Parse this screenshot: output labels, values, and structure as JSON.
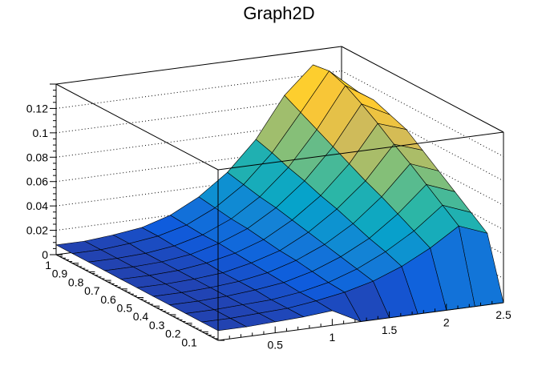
{
  "chart_data": {
    "type": "surface",
    "title": "Graph2D",
    "xlabel": "",
    "ylabel": "",
    "zlabel": "",
    "xlim": [
      0,
      2.5
    ],
    "ylim": [
      0,
      1
    ],
    "zlim": [
      0,
      0.14
    ],
    "x_ticks": [
      "0.5",
      "1",
      "1.5",
      "2",
      "2.5"
    ],
    "x_tick_values": [
      0.5,
      1,
      1.5,
      2,
      2.5
    ],
    "y_ticks": [
      "0.1",
      "0.2",
      "0.3",
      "0.4",
      "0.5",
      "0.6",
      "0.7",
      "0.8",
      "0.9",
      "1"
    ],
    "y_tick_values": [
      0.1,
      0.2,
      0.3,
      0.4,
      0.5,
      0.6,
      0.7,
      0.8,
      0.9,
      1
    ],
    "z_ticks": [
      "0",
      "0.02",
      "0.04",
      "0.06",
      "0.08",
      "0.1",
      "0.12"
    ],
    "z_tick_values": [
      0,
      0.02,
      0.04,
      0.06,
      0.08,
      0.1,
      0.12
    ],
    "grid": "dotted on back walls (z)",
    "palette": [
      "#352a87",
      "#0f5cdd",
      "#1481d6",
      "#06a4ca",
      "#2eb7a4",
      "#87bf77",
      "#d1bb59",
      "#fec832",
      "#f9fb0e"
    ],
    "x": [
      0,
      0.25,
      0.5,
      0.75,
      1,
      1.25,
      1.5,
      1.75,
      2,
      2.25,
      2.5
    ],
    "y": [
      0,
      0.1,
      0.2,
      0.3,
      0.4,
      0.5,
      0.6,
      0.7,
      0.8,
      0.9,
      1
    ],
    "z": [
      [
        0.008,
        0.008,
        0.008,
        0.008,
        0.008,
        0.008,
        0.008,
        0.008,
        0.008,
        0.008,
        0.008
      ],
      [
        0.008,
        0.008,
        0.008,
        0.008,
        0.008,
        0.008,
        0.008,
        0.008,
        0.008,
        0.008,
        0.008
      ],
      [
        0.009,
        0.009,
        0.009,
        0.009,
        0.009,
        0.009,
        0.009,
        0.009,
        0.009,
        0.01,
        0.01
      ],
      [
        0.01,
        0.01,
        0.01,
        0.011,
        0.011,
        0.011,
        0.012,
        0.012,
        0.012,
        0.013,
        0.013
      ],
      [
        0.012,
        0.013,
        0.013,
        0.014,
        0.015,
        0.016,
        0.017,
        0.018,
        0.018,
        0.019,
        0.02
      ],
      [
        0,
        0.017,
        0.018,
        0.02,
        0.022,
        0.023,
        0.025,
        0.027,
        0.028,
        0.03,
        0.032
      ],
      [
        0,
        0.023,
        0.026,
        0.029,
        0.032,
        0.035,
        0.038,
        0.041,
        0.043,
        0.046,
        0.049
      ],
      [
        0,
        0.032,
        0.037,
        0.041,
        0.046,
        0.051,
        0.055,
        0.06,
        0.064,
        0.069,
        0.073
      ],
      [
        0,
        0.044,
        0.051,
        0.058,
        0.065,
        0.071,
        0.078,
        0.085,
        0.092,
        0.099,
        0.106
      ],
      [
        0,
        0.059,
        0.069,
        0.079,
        0.089,
        0.098,
        0.108,
        0.117,
        0.125,
        0.13,
        0.128
      ],
      [
        0,
        0.05,
        0.06,
        0.07,
        0.08,
        0.09,
        0.1,
        0.105,
        0.11,
        0.11,
        0.105
      ]
    ]
  }
}
